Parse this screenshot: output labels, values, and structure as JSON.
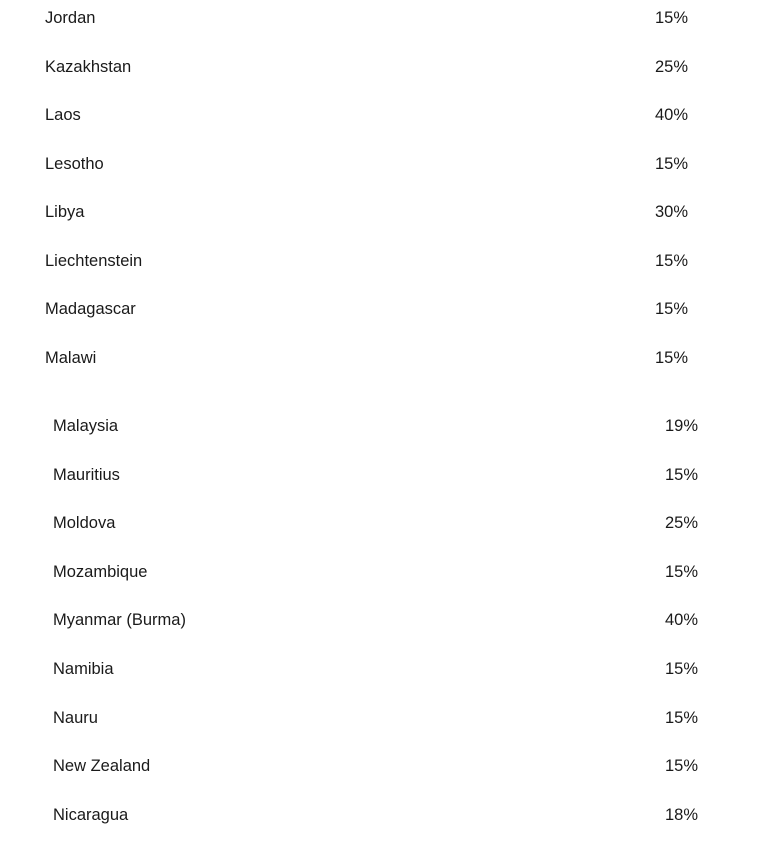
{
  "sections": [
    {
      "rows": [
        {
          "country": "Jordan",
          "rate": "15%"
        },
        {
          "country": "Kazakhstan",
          "rate": "25%"
        },
        {
          "country": "Laos",
          "rate": "40%"
        },
        {
          "country": "Lesotho",
          "rate": "15%"
        },
        {
          "country": "Libya",
          "rate": "30%"
        },
        {
          "country": "Liechtenstein",
          "rate": "15%"
        },
        {
          "country": "Madagascar",
          "rate": "15%"
        },
        {
          "country": "Malawi",
          "rate": "15%"
        }
      ]
    },
    {
      "rows": [
        {
          "country": "Malaysia",
          "rate": "19%"
        },
        {
          "country": "Mauritius",
          "rate": "15%"
        },
        {
          "country": "Moldova",
          "rate": "25%"
        },
        {
          "country": "Mozambique",
          "rate": "15%"
        },
        {
          "country": "Myanmar (Burma)",
          "rate": "40%"
        },
        {
          "country": "Namibia",
          "rate": "15%"
        },
        {
          "country": "Nauru",
          "rate": "15%"
        },
        {
          "country": "New Zealand",
          "rate": "15%"
        },
        {
          "country": "Nicaragua",
          "rate": "18%"
        }
      ]
    }
  ]
}
